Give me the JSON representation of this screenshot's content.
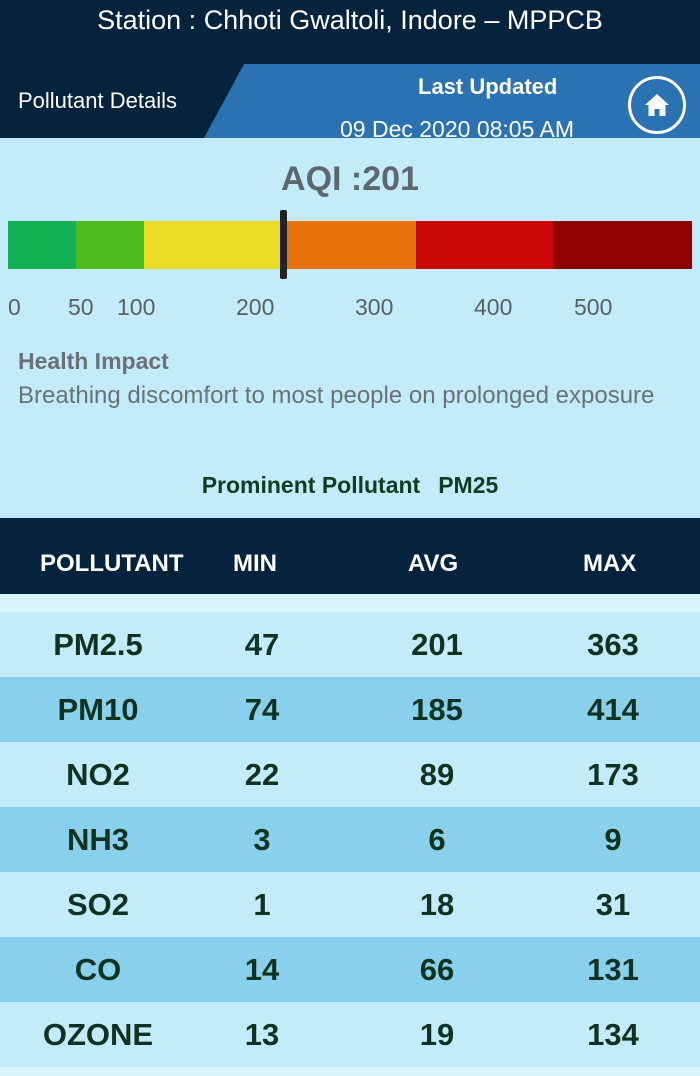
{
  "header": {
    "station_title": "Station : Chhoti Gwaltoli, Indore – MPPCB",
    "page_label": "Pollutant Details",
    "last_updated_label": "Last Updated",
    "last_updated_value": "09 Dec 2020 08:05 AM",
    "home_icon": "home-icon"
  },
  "aqi": {
    "label": "AQI :201",
    "value": 201,
    "scale_labels": [
      "0",
      "50",
      "100",
      "200",
      "300",
      "400",
      "500"
    ],
    "segment_colors": [
      "#12b052",
      "#4cbd1c",
      "#eadb25",
      "#ea720d",
      "#cc0707",
      "#8e0202"
    ],
    "marker_color": "#222222"
  },
  "health": {
    "title": "Health Impact",
    "text": "Breathing discomfort to most people on prolonged exposure"
  },
  "prominent": {
    "label": "Prominent Pollutant",
    "value": "PM25"
  },
  "table": {
    "headers": [
      "POLLUTANT",
      "MIN",
      "AVG",
      "MAX"
    ],
    "rows": [
      {
        "pollutant": "PM2.5",
        "min": "47",
        "avg": "201",
        "max": "363"
      },
      {
        "pollutant": "PM10",
        "min": "74",
        "avg": "185",
        "max": "414"
      },
      {
        "pollutant": "NO2",
        "min": "22",
        "avg": "89",
        "max": "173"
      },
      {
        "pollutant": "NH3",
        "min": "3",
        "avg": "6",
        "max": "9"
      },
      {
        "pollutant": "SO2",
        "min": "1",
        "avg": "18",
        "max": "31"
      },
      {
        "pollutant": "CO",
        "min": "14",
        "avg": "66",
        "max": "131"
      },
      {
        "pollutant": "OZONE",
        "min": "13",
        "avg": "19",
        "max": "134"
      }
    ]
  }
}
